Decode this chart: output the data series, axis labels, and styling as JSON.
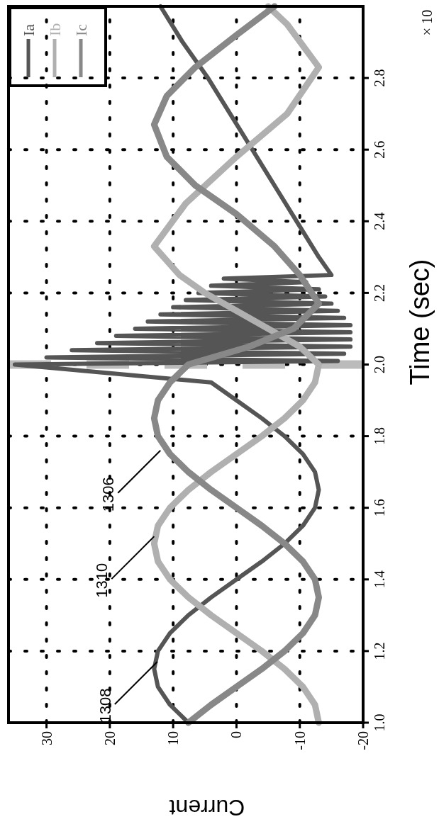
{
  "chart_data": {
    "type": "line",
    "xlabel": "Current",
    "ylabel": "Time (sec)",
    "xlim": [
      36,
      -20
    ],
    "ylim": [
      1.0,
      3.0
    ],
    "xticks": [
      30,
      20,
      10,
      0,
      -10,
      -20
    ],
    "yticks": [
      {
        "value": 1.0,
        "label": "1.0"
      },
      {
        "value": 1.2,
        "label": "1.2"
      },
      {
        "value": 1.4,
        "label": "1.4"
      },
      {
        "value": 1.6,
        "label": "1.6"
      },
      {
        "value": 1.8,
        "label": "1.8"
      },
      {
        "value": 2.0,
        "label": "2.0"
      },
      {
        "value": 2.2,
        "label": "2.2"
      },
      {
        "value": 2.4,
        "label": "2.4"
      },
      {
        "value": 2.6,
        "label": "2.6"
      },
      {
        "value": 2.8,
        "label": "2.8"
      }
    ],
    "grid": true,
    "legend": "top left",
    "series": [
      {
        "name": "Ia",
        "color": "#555555",
        "values": [
          1.0,
          1.05,
          1.1,
          1.15,
          1.2,
          1.25,
          1.3,
          1.35,
          1.4,
          1.45,
          1.5,
          1.55,
          1.6,
          1.65,
          1.7,
          1.75,
          1.8,
          1.85,
          1.9,
          1.95,
          2.0,
          2.01,
          2.02,
          2.03,
          2.04,
          2.05,
          2.06,
          2.07,
          2.08,
          2.09,
          2.1,
          2.11,
          2.12,
          2.13,
          2.14,
          2.15,
          2.16,
          2.17,
          2.18,
          2.19,
          2.2,
          2.21,
          2.22,
          2.23,
          2.24,
          2.25,
          2.3,
          2.4,
          2.5,
          2.6,
          2.7,
          2.8,
          2.9,
          3.0
        ],
        "x": [
          7.6,
          10.5,
          12.4,
          13,
          12.4,
          10.5,
          7.6,
          4.0,
          0,
          -4.0,
          -7.6,
          -10.5,
          -12.4,
          -13,
          -12.4,
          -10.5,
          -7.6,
          -4.0,
          0,
          4.0,
          35,
          -16,
          30,
          -17,
          26,
          -18,
          22,
          -18,
          19,
          -18,
          16,
          -18,
          14,
          -17,
          12,
          -16,
          10,
          -15,
          8,
          -14,
          6,
          -13,
          4,
          -11,
          2,
          -15,
          -13,
          -9.5,
          -6,
          -2.5,
          1,
          4.5,
          8.5,
          12
        ]
      },
      {
        "name": "Ib",
        "color": "#b0b0b0",
        "values": [
          1.0,
          1.05,
          1.1,
          1.15,
          1.2,
          1.25,
          1.3,
          1.35,
          1.4,
          1.45,
          1.5,
          1.55,
          1.6,
          1.65,
          1.7,
          1.75,
          1.8,
          1.85,
          1.9,
          1.95,
          2.0,
          2.05,
          2.1,
          2.15,
          2.2,
          2.25,
          2.33,
          2.45,
          2.58,
          2.7,
          2.83,
          2.95,
          3.0
        ],
        "x": [
          -13,
          -12.4,
          -10.5,
          -7.6,
          -4.0,
          0,
          4.0,
          7.6,
          10.5,
          12.4,
          13,
          12.4,
          10.5,
          7.6,
          4.0,
          0,
          -4.0,
          -7.6,
          -10.5,
          -12.4,
          -13,
          -10,
          -5,
          0,
          5,
          9,
          13,
          8,
          0,
          -8,
          -13,
          -8,
          -5
        ]
      },
      {
        "name": "Ic",
        "color": "#888888",
        "values": [
          1.0,
          1.05,
          1.1,
          1.15,
          1.2,
          1.25,
          1.3,
          1.35,
          1.4,
          1.45,
          1.5,
          1.55,
          1.6,
          1.65,
          1.7,
          1.75,
          1.8,
          1.85,
          1.9,
          1.95,
          2.0,
          2.05,
          2.1,
          2.17,
          2.25,
          2.33,
          2.42,
          2.5,
          2.58,
          2.67,
          2.75,
          2.83,
          2.92,
          3.0
        ],
        "x": [
          7.6,
          4.0,
          0,
          -4.0,
          -7.6,
          -10.5,
          -12.4,
          -13,
          -12.4,
          -10.5,
          -7.6,
          -4.0,
          0,
          4.0,
          7.6,
          10.5,
          12.4,
          13,
          12.4,
          10.5,
          7.6,
          -2,
          -9,
          -13,
          -10,
          -6,
          0,
          6.5,
          11,
          13,
          11,
          6.5,
          0,
          -6
        ]
      }
    ],
    "ref_lines": [
      {
        "axis": "y",
        "value": 2.0,
        "color": "#bbbbbb",
        "line_style": "dashed"
      }
    ],
    "annotations": [
      {
        "text": "1308",
        "x": 12.5,
        "y": 1.17
      },
      {
        "text": "1310",
        "x": 13,
        "y": 1.52
      },
      {
        "text": "1306",
        "x": 12,
        "y": 1.76
      },
      "× 10"
    ]
  }
}
